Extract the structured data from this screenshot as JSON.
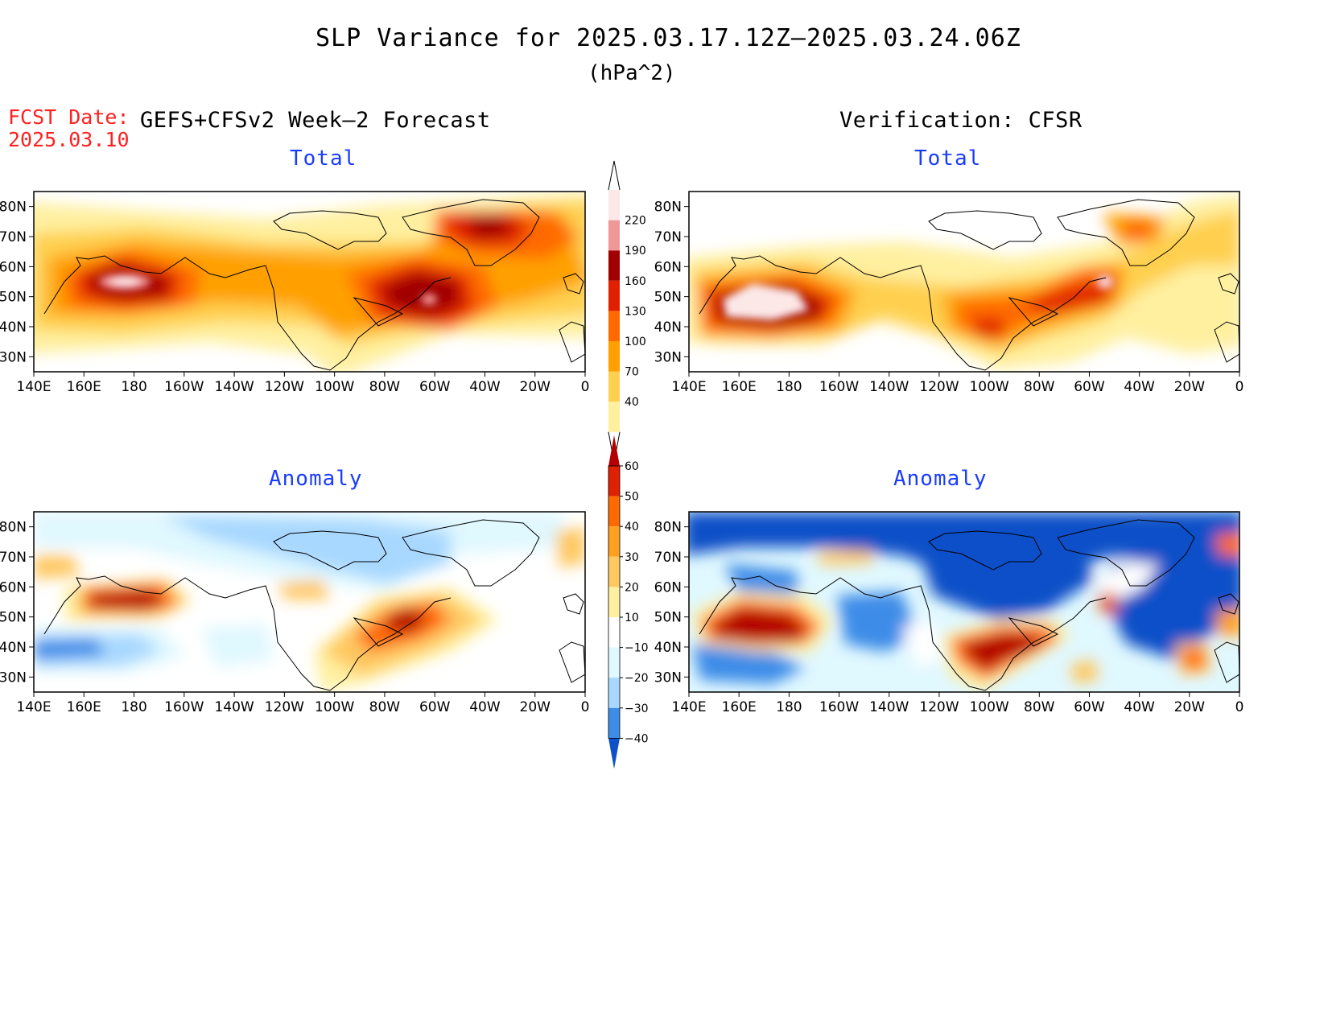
{
  "title": "SLP Variance for 2025.03.17.12Z–2025.03.24.06Z",
  "units": "(hPa^2)",
  "fcst_date": {
    "label": "FCST Date:",
    "value": "2025.03.10"
  },
  "left_header": "GEFS+CFSv2 Week–2 Forecast",
  "right_header": "Verification: CFSR",
  "axes": {
    "lon_ticks": [
      "140E",
      "160E",
      "180",
      "160W",
      "140W",
      "120W",
      "100W",
      "80W",
      "60W",
      "40W",
      "20W",
      "0"
    ],
    "lat_ticks": [
      "80N",
      "70N",
      "60N",
      "50N",
      "40N",
      "30N"
    ]
  },
  "panels": [
    {
      "id": "forecast-total",
      "title": "Total"
    },
    {
      "id": "verification-total",
      "title": "Total"
    },
    {
      "id": "forecast-anomaly",
      "title": "Anomaly"
    },
    {
      "id": "verification-anomaly",
      "title": "Anomaly"
    }
  ],
  "colorbars": {
    "total": {
      "levels": [
        "40",
        "70",
        "100",
        "130",
        "160",
        "190",
        "220"
      ],
      "colors": [
        "#fff0a0",
        "#ffd050",
        "#ffa000",
        "#ff6a00",
        "#e02000",
        "#a00000",
        "#f09898",
        "#fde8e8"
      ]
    },
    "anomaly": {
      "levels": [
        "60",
        "50",
        "40",
        "30",
        "20",
        "10",
        "−10",
        "−20",
        "−30",
        "−40"
      ],
      "colors": [
        "#b40000",
        "#e02000",
        "#ff6a00",
        "#ffa020",
        "#ffc860",
        "#fff0a0",
        "#ffffff",
        "#e0f8ff",
        "#a8d8ff",
        "#3c8ce8",
        "#1050c8"
      ]
    }
  }
}
